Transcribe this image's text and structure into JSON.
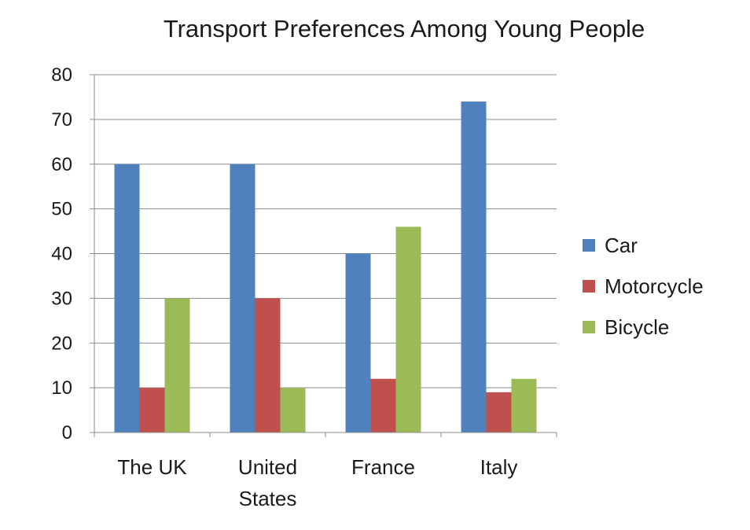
{
  "chart_data": {
    "type": "bar",
    "title": "Transport Preferences Among Young People",
    "categories": [
      [
        "The UK"
      ],
      [
        "United",
        "States"
      ],
      [
        "France"
      ],
      [
        "Italy"
      ]
    ],
    "series": [
      {
        "name": "Car",
        "color": "#4f81bd",
        "values": [
          60,
          60,
          40,
          74
        ]
      },
      {
        "name": "Motorcycle",
        "color": "#c0504d",
        "values": [
          10,
          30,
          12,
          9
        ]
      },
      {
        "name": "Bicycle",
        "color": "#9bbb59",
        "values": [
          30,
          10,
          46,
          12
        ]
      }
    ],
    "yticks": [
      "0",
      "10",
      "20",
      "30",
      "40",
      "50",
      "60",
      "70",
      "80"
    ],
    "ylim": [
      0,
      80
    ],
    "grid": true,
    "legend_position": "right"
  }
}
